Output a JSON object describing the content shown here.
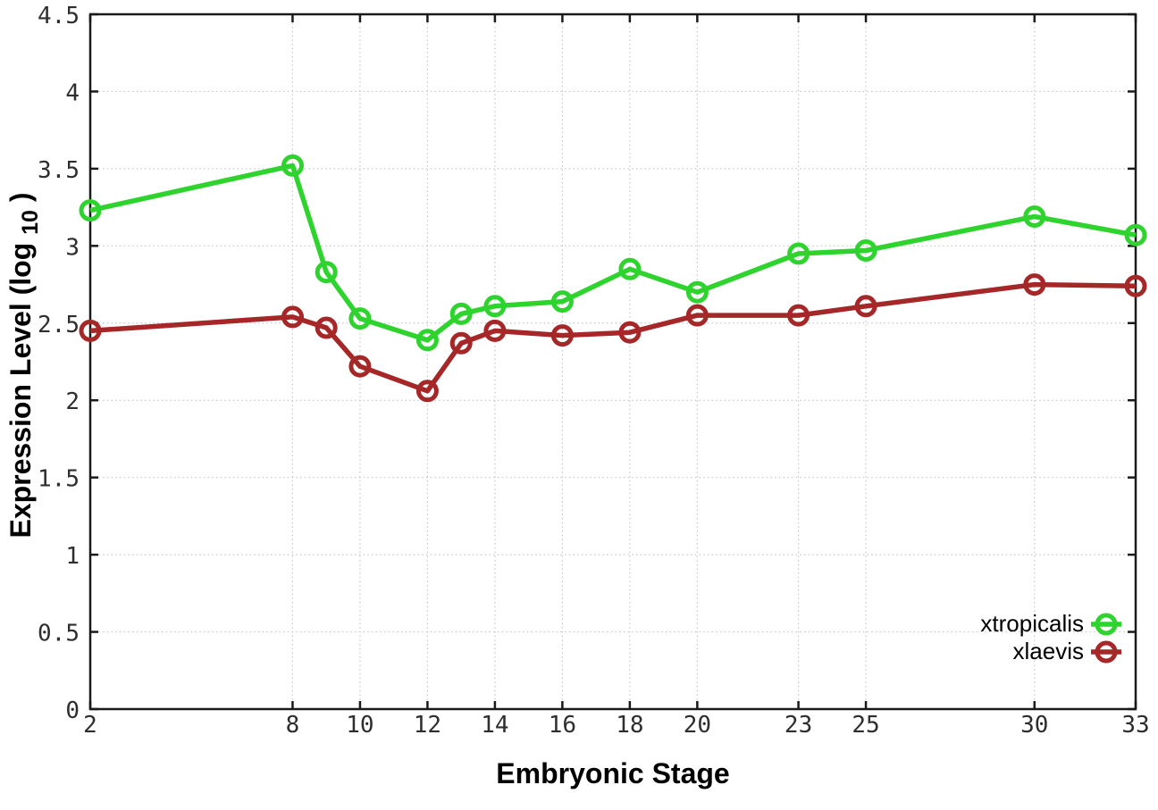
{
  "chart_data": {
    "type": "line",
    "title": "",
    "xlabel": "Embryonic Stage",
    "ylabel": "Expression Level (log10)",
    "ylabel_parts": {
      "prefix": "Expression Level (log",
      "sub": "10",
      "suffix": ")"
    },
    "xlim": [
      2,
      33
    ],
    "ylim": [
      0,
      4.5
    ],
    "x_ticks": [
      2,
      8,
      10,
      12,
      14,
      16,
      18,
      20,
      23,
      25,
      30,
      33
    ],
    "x_tick_labels": [
      "2",
      "8",
      "10",
      "12",
      "14",
      "16",
      "18",
      "20",
      "23",
      "25",
      "30",
      "33"
    ],
    "y_ticks": [
      0,
      0.5,
      1,
      1.5,
      2,
      2.5,
      3,
      3.5,
      4,
      4.5
    ],
    "y_tick_labels": [
      "0",
      "0.5",
      "1",
      "1.5",
      "2",
      "2.5",
      "3",
      "3.5",
      "4",
      "4.5"
    ],
    "grid": "dotted",
    "legend_position": "bottom-right",
    "x": [
      2,
      8,
      9,
      10,
      12,
      13,
      14,
      16,
      18,
      20,
      23,
      25,
      30,
      33
    ],
    "series": [
      {
        "name": "xtropicalis",
        "color": "#2ed32e",
        "marker": "open-circle",
        "values": [
          3.23,
          3.52,
          2.83,
          2.53,
          2.39,
          2.56,
          2.61,
          2.64,
          2.85,
          2.7,
          2.95,
          2.97,
          3.19,
          3.07
        ]
      },
      {
        "name": "xlaevis",
        "color": "#a52727",
        "marker": "open-circle",
        "values": [
          2.45,
          2.54,
          2.47,
          2.22,
          2.06,
          2.37,
          2.45,
          2.42,
          2.44,
          2.55,
          2.55,
          2.61,
          2.75,
          2.74
        ]
      }
    ]
  },
  "colors": {
    "background": "#ffffff",
    "frame": "#1a1a1a",
    "grid": "#c6c6c6",
    "tick_text": "#2e2e2e",
    "label_text": "#000000"
  }
}
